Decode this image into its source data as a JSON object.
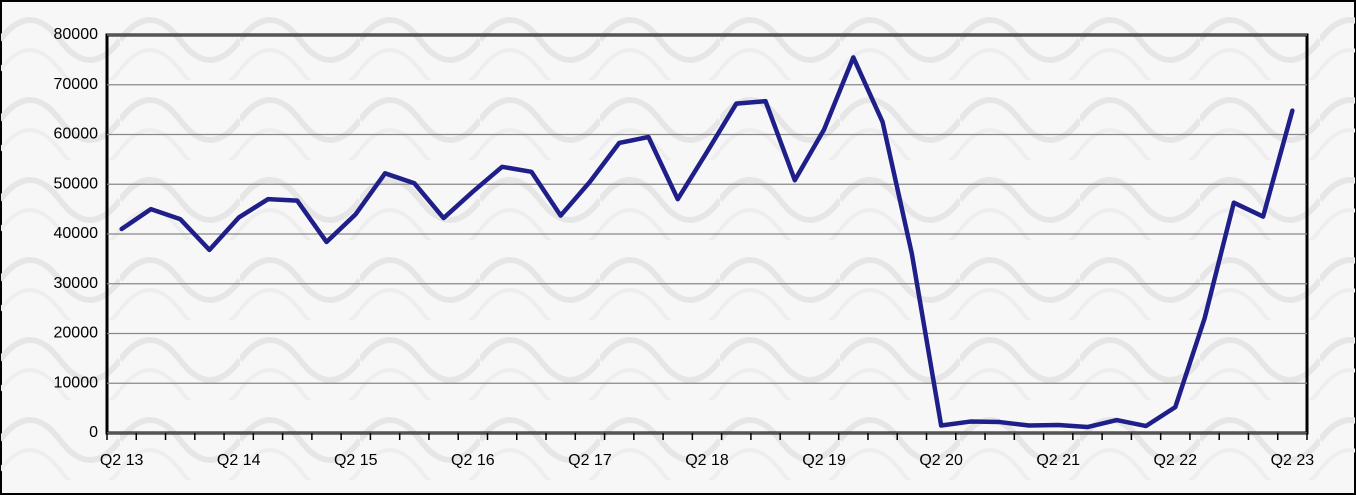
{
  "chart_data": {
    "type": "line",
    "categories": [
      "Q2 13",
      null,
      null,
      null,
      "Q2 14",
      null,
      null,
      null,
      "Q2 15",
      null,
      null,
      null,
      "Q2 16",
      null,
      null,
      null,
      "Q2 17",
      null,
      null,
      null,
      "Q2 18",
      null,
      null,
      null,
      "Q2 19",
      null,
      null,
      null,
      "Q2 20",
      null,
      null,
      null,
      "Q2 21",
      null,
      null,
      null,
      "Q2 22",
      null,
      null,
      null,
      "Q2 23"
    ],
    "values": [
      41000,
      45000,
      43000,
      36800,
      43300,
      47000,
      46700,
      38400,
      44000,
      52200,
      50200,
      43200,
      48500,
      53500,
      52500,
      43700,
      50500,
      58300,
      59500,
      47000,
      56500,
      66200,
      66700,
      50800,
      61000,
      75500,
      62500,
      36000,
      1500,
      2300,
      2200,
      1500,
      1600,
      1200,
      2600,
      1400,
      5200,
      23000,
      46300,
      43500,
      64800
    ],
    "color": "#1f1f8a",
    "ylim": [
      0,
      80000
    ],
    "yticks": [
      0,
      10000,
      20000,
      30000,
      40000,
      50000,
      60000,
      70000,
      80000
    ],
    "grid": true
  }
}
